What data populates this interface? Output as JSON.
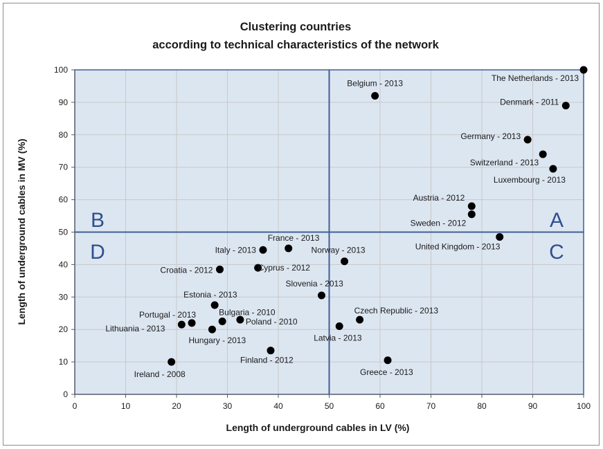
{
  "chart_data": {
    "type": "scatter",
    "title_lines": [
      "Clustering countries",
      "according to technical characteristics of the network"
    ],
    "xlabel": "Length of underground cables in LV (%)",
    "ylabel": "Length of underground cables in MV (%)",
    "xlim": [
      0,
      100
    ],
    "ylim": [
      0,
      100
    ],
    "x_ticks": [
      0,
      10,
      20,
      30,
      40,
      50,
      60,
      70,
      80,
      90,
      100
    ],
    "y_ticks": [
      0,
      10,
      20,
      30,
      40,
      50,
      60,
      70,
      80,
      90,
      100
    ],
    "grid": true,
    "quadrant_split": {
      "x": 50,
      "y": 50
    },
    "quadrants": [
      {
        "label": "A"
      },
      {
        "label": "B"
      },
      {
        "label": "C"
      },
      {
        "label": "D"
      }
    ],
    "points": [
      {
        "label": "The Netherlands - 2013",
        "x": 100,
        "y": 100
      },
      {
        "label": "Belgium - 2013",
        "x": 59,
        "y": 92
      },
      {
        "label": "Denmark - 2011",
        "x": 96.5,
        "y": 89
      },
      {
        "label": "Germany - 2013",
        "x": 89,
        "y": 78.5
      },
      {
        "label": "Switzerland - 2013",
        "x": 92,
        "y": 74
      },
      {
        "label": "Luxembourg - 2013",
        "x": 94,
        "y": 69.5
      },
      {
        "label": "Austria - 2012",
        "x": 78,
        "y": 58
      },
      {
        "label": "Sweden - 2012",
        "x": 78,
        "y": 55.5
      },
      {
        "label": "United Kingdom - 2013",
        "x": 83.5,
        "y": 48.5
      },
      {
        "label": "France - 2013",
        "x": 42,
        "y": 45
      },
      {
        "label": "Italy - 2013",
        "x": 37,
        "y": 44.5
      },
      {
        "label": "Norway - 2013",
        "x": 53,
        "y": 41
      },
      {
        "label": "Croatia - 2012",
        "x": 28.5,
        "y": 38.5
      },
      {
        "label": "Cyprus - 2012",
        "x": 36,
        "y": 39
      },
      {
        "label": "Slovenia - 2013",
        "x": 48.5,
        "y": 30.5
      },
      {
        "label": "Estonia - 2013",
        "x": 27.5,
        "y": 27.5
      },
      {
        "label": "Bulgaria - 2010",
        "x": 29,
        "y": 22.5
      },
      {
        "label": "Poland - 2010",
        "x": 32.5,
        "y": 23
      },
      {
        "label": "Portugal - 2013",
        "x": 23,
        "y": 22
      },
      {
        "label": "Lithuania - 2013",
        "x": 21,
        "y": 21.5
      },
      {
        "label": "Hungary - 2013",
        "x": 27,
        "y": 20
      },
      {
        "label": "Czech Republic - 2013",
        "x": 56,
        "y": 23
      },
      {
        "label": "Latvia - 2013",
        "x": 52,
        "y": 21
      },
      {
        "label": "Finland - 2012",
        "x": 38.5,
        "y": 13.5
      },
      {
        "label": "Ireland - 2008",
        "x": 19,
        "y": 10
      },
      {
        "label": "Greece - 2013",
        "x": 61.5,
        "y": 10.5
      }
    ],
    "colors": {
      "marker": "#000000",
      "quadrant_fill": "#dce6f1",
      "quadrant_border": "#3f5f96",
      "gridline": "#c8c8c8"
    }
  }
}
